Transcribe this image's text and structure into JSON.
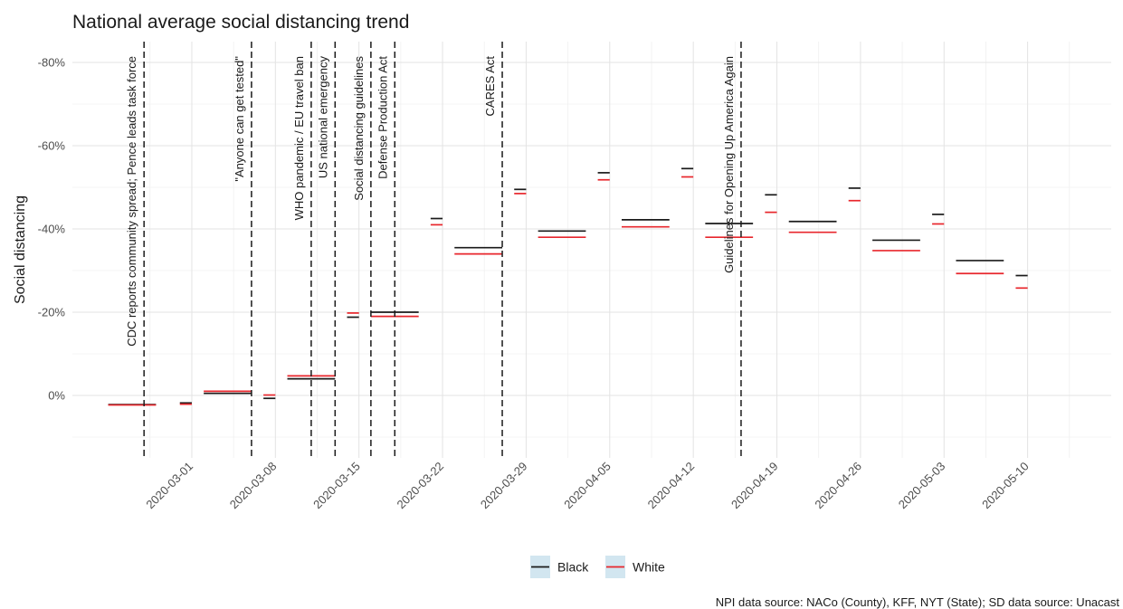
{
  "chart_data": {
    "type": "line",
    "title": "National average social distancing trend",
    "xlabel": "",
    "ylabel": "Social distancing",
    "caption": "NPI data source: NACo (County), KFF, NYT (State); SD data source: Unacast",
    "y_reversed": true,
    "ylim": [
      15,
      -85
    ],
    "xlim": [
      "2020-02-20",
      "2020-05-17"
    ],
    "grid": true,
    "legend_position": "bottom",
    "y_ticks": [
      {
        "value": -80,
        "label": "-80%"
      },
      {
        "value": -60,
        "label": "-60%"
      },
      {
        "value": -40,
        "label": "-40%"
      },
      {
        "value": -20,
        "label": "-20%"
      },
      {
        "value": 0,
        "label": "0%"
      }
    ],
    "x_ticks": [
      {
        "date": "2020-03-01",
        "label": "2020-03-01"
      },
      {
        "date": "2020-03-08",
        "label": "2020-03-08"
      },
      {
        "date": "2020-03-15",
        "label": "2020-03-15"
      },
      {
        "date": "2020-03-22",
        "label": "2020-03-22"
      },
      {
        "date": "2020-03-29",
        "label": "2020-03-29"
      },
      {
        "date": "2020-04-05",
        "label": "2020-04-05"
      },
      {
        "date": "2020-04-12",
        "label": "2020-04-12"
      },
      {
        "date": "2020-04-19",
        "label": "2020-04-19"
      },
      {
        "date": "2020-04-26",
        "label": "2020-04-26"
      },
      {
        "date": "2020-05-03",
        "label": "2020-05-03"
      },
      {
        "date": "2020-05-10",
        "label": "2020-05-10"
      }
    ],
    "events": [
      {
        "date": "2020-02-26",
        "label": "CDC reports community spread; Pence leads task force"
      },
      {
        "date": "2020-03-06",
        "label": "\"Anyone can get tested\""
      },
      {
        "date": "2020-03-11",
        "label": "WHO pandemic / EU travel ban"
      },
      {
        "date": "2020-03-13",
        "label": "US national emergency"
      },
      {
        "date": "2020-03-16",
        "label": "Social distancing guidelines"
      },
      {
        "date": "2020-03-18",
        "label": "Defense Production Act"
      },
      {
        "date": "2020-03-27",
        "label": "CARES Act"
      },
      {
        "date": "2020-04-16",
        "label": "Guidelines for Opening Up America Again"
      }
    ],
    "series": [
      {
        "name": "Black",
        "color": "#1a1a1a",
        "segments": [
          {
            "start": "2020-02-23",
            "end": "2020-02-27",
            "value": 2.2
          },
          {
            "start": "2020-02-29",
            "end": "2020-03-01",
            "value": 1.8
          },
          {
            "start": "2020-03-02",
            "end": "2020-03-06",
            "value": -0.5
          },
          {
            "start": "2020-03-07",
            "end": "2020-03-08",
            "value": 0.7
          },
          {
            "start": "2020-03-09",
            "end": "2020-03-13",
            "value": -4.0
          },
          {
            "start": "2020-03-14",
            "end": "2020-03-15",
            "value": -18.8
          },
          {
            "start": "2020-03-16",
            "end": "2020-03-20",
            "value": -20.0
          },
          {
            "start": "2020-03-21",
            "end": "2020-03-22",
            "value": -42.5
          },
          {
            "start": "2020-03-23",
            "end": "2020-03-27",
            "value": -35.5
          },
          {
            "start": "2020-03-28",
            "end": "2020-03-29",
            "value": -49.5
          },
          {
            "start": "2020-03-30",
            "end": "2020-04-03",
            "value": -39.5
          },
          {
            "start": "2020-04-04",
            "end": "2020-04-05",
            "value": -53.5
          },
          {
            "start": "2020-04-06",
            "end": "2020-04-10",
            "value": -42.2
          },
          {
            "start": "2020-04-11",
            "end": "2020-04-12",
            "value": -54.5
          },
          {
            "start": "2020-04-13",
            "end": "2020-04-17",
            "value": -41.3
          },
          {
            "start": "2020-04-18",
            "end": "2020-04-19",
            "value": -48.2
          },
          {
            "start": "2020-04-20",
            "end": "2020-04-24",
            "value": -41.8
          },
          {
            "start": "2020-04-25",
            "end": "2020-04-26",
            "value": -49.8
          },
          {
            "start": "2020-04-27",
            "end": "2020-05-01",
            "value": -37.3
          },
          {
            "start": "2020-05-02",
            "end": "2020-05-03",
            "value": -43.5
          },
          {
            "start": "2020-05-04",
            "end": "2020-05-08",
            "value": -32.4
          },
          {
            "start": "2020-05-09",
            "end": "2020-05-10",
            "value": -28.8
          }
        ]
      },
      {
        "name": "White",
        "color": "#e8262c",
        "segments": [
          {
            "start": "2020-02-23",
            "end": "2020-02-27",
            "value": 2.3
          },
          {
            "start": "2020-02-29",
            "end": "2020-03-01",
            "value": 2.1
          },
          {
            "start": "2020-03-02",
            "end": "2020-03-06",
            "value": -1.0
          },
          {
            "start": "2020-03-07",
            "end": "2020-03-08",
            "value": -0.1
          },
          {
            "start": "2020-03-09",
            "end": "2020-03-13",
            "value": -4.7
          },
          {
            "start": "2020-03-14",
            "end": "2020-03-15",
            "value": -19.8
          },
          {
            "start": "2020-03-16",
            "end": "2020-03-20",
            "value": -19.0
          },
          {
            "start": "2020-03-21",
            "end": "2020-03-22",
            "value": -41.0
          },
          {
            "start": "2020-03-23",
            "end": "2020-03-27",
            "value": -34.0
          },
          {
            "start": "2020-03-28",
            "end": "2020-03-29",
            "value": -48.5
          },
          {
            "start": "2020-03-30",
            "end": "2020-04-03",
            "value": -38.0
          },
          {
            "start": "2020-04-04",
            "end": "2020-04-05",
            "value": -51.8
          },
          {
            "start": "2020-04-06",
            "end": "2020-04-10",
            "value": -40.5
          },
          {
            "start": "2020-04-11",
            "end": "2020-04-12",
            "value": -52.5
          },
          {
            "start": "2020-04-13",
            "end": "2020-04-17",
            "value": -38.0
          },
          {
            "start": "2020-04-18",
            "end": "2020-04-19",
            "value": -44.0
          },
          {
            "start": "2020-04-20",
            "end": "2020-04-24",
            "value": -39.2
          },
          {
            "start": "2020-04-25",
            "end": "2020-04-26",
            "value": -46.8
          },
          {
            "start": "2020-04-27",
            "end": "2020-05-01",
            "value": -34.8
          },
          {
            "start": "2020-05-02",
            "end": "2020-05-03",
            "value": -41.2
          },
          {
            "start": "2020-05-04",
            "end": "2020-05-08",
            "value": -29.3
          },
          {
            "start": "2020-05-09",
            "end": "2020-05-10",
            "value": -25.8
          }
        ]
      }
    ]
  }
}
